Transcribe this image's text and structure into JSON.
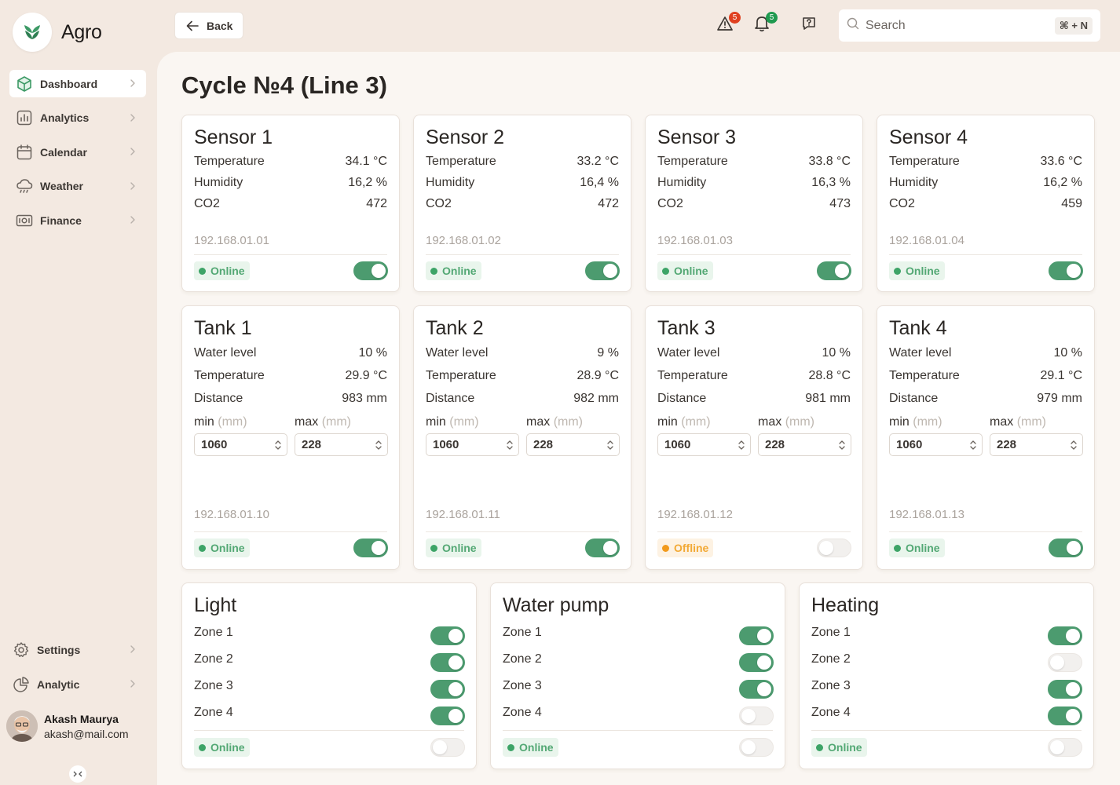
{
  "app": {
    "name": "Agro"
  },
  "colors": {
    "accent": "#4c9b6f",
    "online": "#3da467",
    "offline": "#f29a1c",
    "alert_badge": "#e0401f",
    "notify_badge": "#1f9a4f"
  },
  "sidebar": {
    "items": [
      {
        "label": "Dashboard",
        "icon": "cube-icon",
        "active": true
      },
      {
        "label": "Analytics",
        "icon": "bar-chart-icon"
      },
      {
        "label": "Calendar",
        "icon": "calendar-icon"
      },
      {
        "label": "Weather",
        "icon": "cloud-rain-icon"
      },
      {
        "label": "Finance",
        "icon": "banknote-icon"
      }
    ],
    "bottom_items": [
      {
        "label": "Settings",
        "icon": "gear-icon"
      },
      {
        "label": "Analytic",
        "icon": "pie-chart-icon"
      }
    ],
    "user": {
      "name": "Akash Maurya",
      "email": "akash@mail.com"
    }
  },
  "header": {
    "back_label": "Back",
    "alerts_count": "5",
    "notifications_count": "5",
    "search": {
      "placeholder": "Search",
      "shortcut": "⌘ + N"
    }
  },
  "page": {
    "title": "Cycle №4 (Line 3)"
  },
  "sensors": [
    {
      "title": "Sensor 1",
      "rows": [
        [
          "Temperature",
          "34.1 °C"
        ],
        [
          "Humidity",
          "16,2 %"
        ],
        [
          "CO2",
          "472"
        ]
      ],
      "ip": "192.168.01.01",
      "status": "Online",
      "enabled": true
    },
    {
      "title": "Sensor 2",
      "rows": [
        [
          "Temperature",
          "33.2 °C"
        ],
        [
          "Humidity",
          "16,4 %"
        ],
        [
          "CO2",
          "472"
        ]
      ],
      "ip": "192.168.01.02",
      "status": "Online",
      "enabled": true
    },
    {
      "title": "Sensor 3",
      "rows": [
        [
          "Temperature",
          "33.8 °C"
        ],
        [
          "Humidity",
          "16,3 %"
        ],
        [
          "CO2",
          "473"
        ]
      ],
      "ip": "192.168.01.03",
      "status": "Online",
      "enabled": true
    },
    {
      "title": "Sensor 4",
      "rows": [
        [
          "Temperature",
          "33.6 °C"
        ],
        [
          "Humidity",
          "16,2 %"
        ],
        [
          "CO2",
          "459"
        ]
      ],
      "ip": "192.168.01.04",
      "status": "Online",
      "enabled": true
    }
  ],
  "tanks": [
    {
      "title": "Tank 1",
      "rows": [
        [
          "Water level",
          "10 %"
        ],
        [
          "Temperature",
          "29.9 °C"
        ],
        [
          "Distance",
          "983 mm"
        ]
      ],
      "min_label": "min",
      "max_label": "max",
      "unit": "(mm)",
      "min": "1060",
      "max": "228",
      "ip": "192.168.01.10",
      "status": "Online",
      "enabled": true
    },
    {
      "title": "Tank 2",
      "rows": [
        [
          "Water level",
          "9 %"
        ],
        [
          "Temperature",
          "28.9 °C"
        ],
        [
          "Distance",
          "982 mm"
        ]
      ],
      "min_label": "min",
      "max_label": "max",
      "unit": "(mm)",
      "min": "1060",
      "max": "228",
      "ip": "192.168.01.11",
      "status": "Online",
      "enabled": true
    },
    {
      "title": "Tank 3",
      "rows": [
        [
          "Water level",
          "10 %"
        ],
        [
          "Temperature",
          "28.8 °C"
        ],
        [
          "Distance",
          "981 mm"
        ]
      ],
      "min_label": "min",
      "max_label": "max",
      "unit": "(mm)",
      "min": "1060",
      "max": "228",
      "ip": "192.168.01.12",
      "status": "Offline",
      "enabled": false
    },
    {
      "title": "Tank 4",
      "rows": [
        [
          "Water level",
          "10 %"
        ],
        [
          "Temperature",
          "29.1 °C"
        ],
        [
          "Distance",
          "979 mm"
        ]
      ],
      "min_label": "min",
      "max_label": "max",
      "unit": "(mm)",
      "min": "1060",
      "max": "228",
      "ip": "192.168.01.13",
      "status": "Online",
      "enabled": true
    }
  ],
  "controls": [
    {
      "title": "Light",
      "zones": [
        [
          "Zone 1",
          true
        ],
        [
          "Zone 2",
          true
        ],
        [
          "Zone 3",
          true
        ],
        [
          "Zone 4",
          true
        ]
      ],
      "status": "Online",
      "enabled": false
    },
    {
      "title": "Water pump",
      "zones": [
        [
          "Zone 1",
          true
        ],
        [
          "Zone 2",
          true
        ],
        [
          "Zone 3",
          true
        ],
        [
          "Zone 4",
          false
        ]
      ],
      "status": "Online",
      "enabled": false
    },
    {
      "title": "Heating",
      "zones": [
        [
          "Zone 1",
          true
        ],
        [
          "Zone 2",
          false
        ],
        [
          "Zone 3",
          true
        ],
        [
          "Zone 4",
          true
        ]
      ],
      "status": "Online",
      "enabled": false
    }
  ]
}
